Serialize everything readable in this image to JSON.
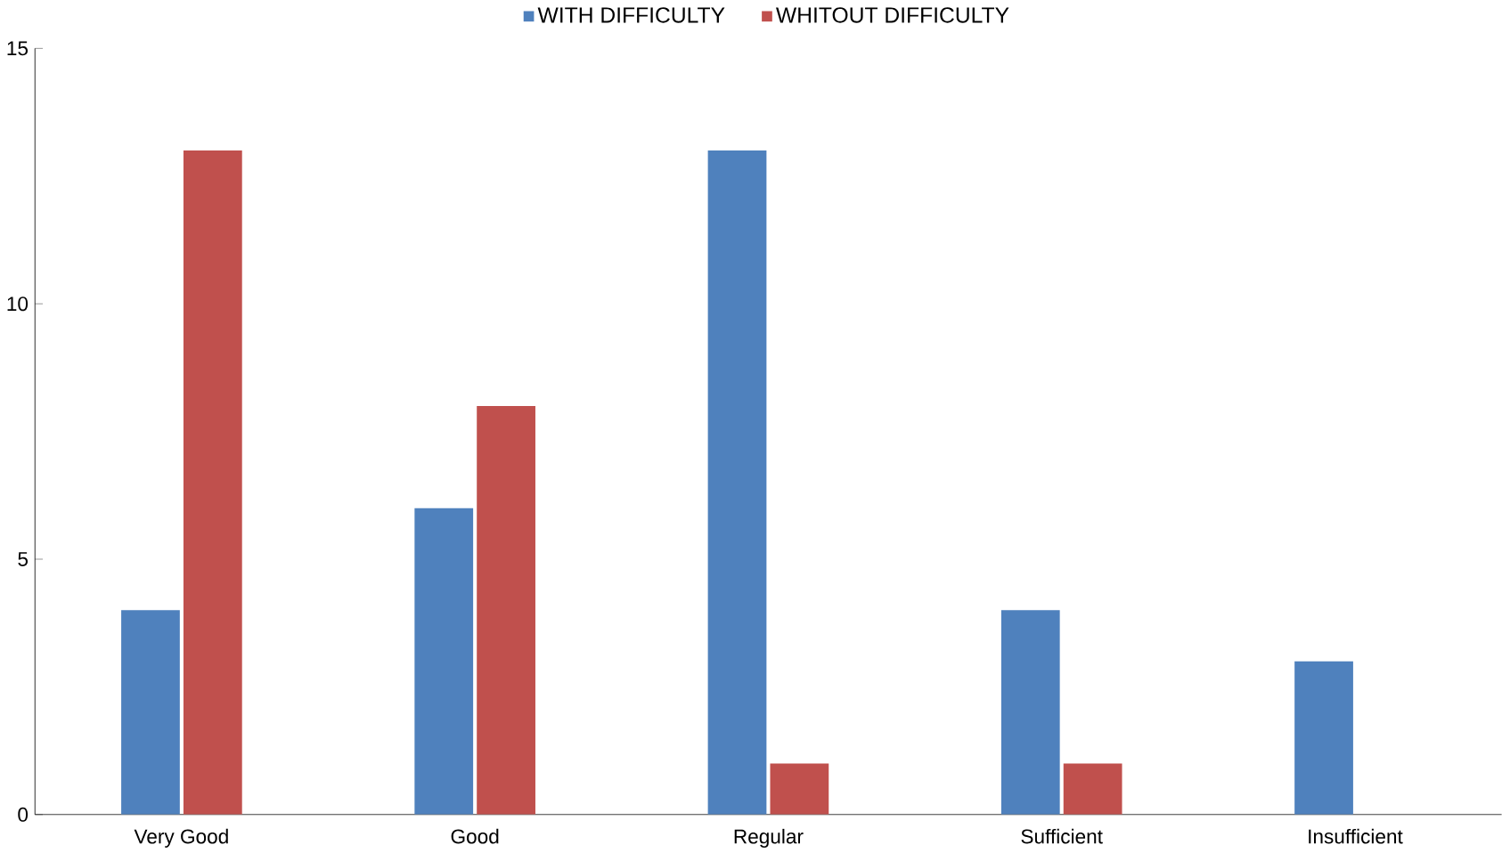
{
  "chart_data": {
    "type": "bar",
    "categories": [
      "Very Good",
      "Good",
      "Regular",
      "Sufficient",
      "Insufficient"
    ],
    "series": [
      {
        "name": "WITH DIFFICULTY",
        "color": "#4f81bd",
        "values": [
          4,
          6,
          13,
          4,
          3
        ]
      },
      {
        "name": "WHITOUT DIFFICULTY",
        "color": "#c0504d",
        "values": [
          13,
          8,
          1,
          1,
          0
        ]
      }
    ],
    "ylim": [
      0,
      15
    ],
    "yticks": [
      0,
      5,
      10,
      15
    ],
    "grid": false,
    "legend": "top"
  }
}
